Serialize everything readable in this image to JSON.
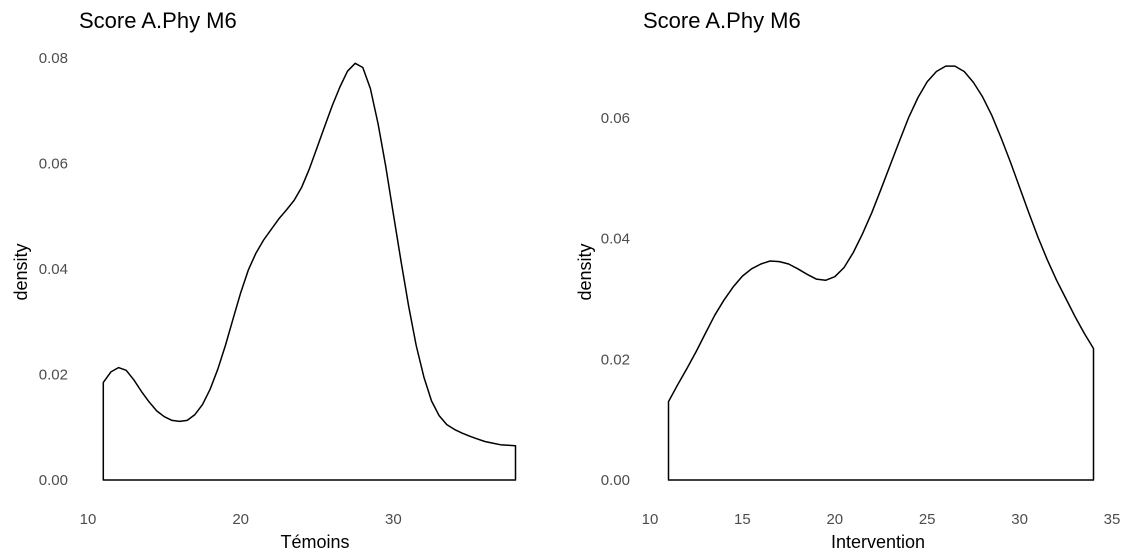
{
  "chart_data": [
    {
      "type": "area",
      "title": "Score A.Phy M6",
      "xlabel": "Témoins",
      "ylabel": "density",
      "xlim": [
        11,
        38
      ],
      "ylim": [
        0,
        0.08
      ],
      "x_ticks": [
        "10",
        "20",
        "30"
      ],
      "y_ticks": [
        "0.00",
        "0.02",
        "0.04",
        "0.06",
        "0.08"
      ],
      "grid": false,
      "series": [
        {
          "x": [
            11,
            11.5,
            12,
            12.5,
            13,
            13.5,
            14,
            14.5,
            15,
            15.5,
            16,
            16.5,
            17,
            17.5,
            18,
            18.5,
            19,
            19.5,
            20,
            20.5,
            21,
            21.5,
            22,
            22.5,
            23,
            23.5,
            24,
            24.5,
            25,
            25.5,
            26,
            26.5,
            27,
            27.5,
            28,
            28.5,
            29,
            29.5,
            30,
            30.5,
            31,
            31.5,
            32,
            32.5,
            33,
            33.5,
            34,
            34.5,
            35,
            35.5,
            36,
            36.5,
            37,
            37.5,
            38
          ],
          "y": [
            0.0185,
            0.0205,
            0.0213,
            0.0208,
            0.019,
            0.0168,
            0.0148,
            0.0131,
            0.012,
            0.0113,
            0.0111,
            0.0113,
            0.0124,
            0.0143,
            0.0172,
            0.021,
            0.0255,
            0.0305,
            0.0355,
            0.0398,
            0.043,
            0.0455,
            0.0475,
            0.0495,
            0.0512,
            0.053,
            0.0555,
            0.059,
            0.063,
            0.067,
            0.071,
            0.0745,
            0.0775,
            0.079,
            0.0782,
            0.0742,
            0.0675,
            0.0595,
            0.0505,
            0.0415,
            0.033,
            0.0255,
            0.0195,
            0.015,
            0.0122,
            0.0105,
            0.0096,
            0.0089,
            0.0083,
            0.0078,
            0.0073,
            0.007,
            0.0067,
            0.0066,
            0.0065
          ]
        }
      ]
    },
    {
      "type": "area",
      "title": "Score A.Phy M6",
      "xlabel": "Intervention",
      "ylabel": "density",
      "xlim": [
        11,
        34
      ],
      "ylim": [
        0,
        0.07
      ],
      "x_ticks": [
        "10",
        "15",
        "20",
        "25",
        "30",
        "35"
      ],
      "y_ticks": [
        "0.00",
        "0.02",
        "0.04",
        "0.06"
      ],
      "grid": false,
      "series": [
        {
          "x": [
            11,
            11.5,
            12,
            12.5,
            13,
            13.5,
            14,
            14.5,
            15,
            15.5,
            16,
            16.5,
            17,
            17.5,
            18,
            18.5,
            19,
            19.5,
            20,
            20.5,
            21,
            21.5,
            22,
            22.5,
            23,
            23.5,
            24,
            24.5,
            25,
            25.5,
            26,
            26.5,
            27,
            27.5,
            28,
            28.5,
            29,
            29.5,
            30,
            30.5,
            31,
            31.5,
            32,
            32.5,
            33,
            33.5,
            34
          ],
          "y": [
            0.013,
            0.0158,
            0.0185,
            0.0213,
            0.0243,
            0.0273,
            0.0298,
            0.032,
            0.0338,
            0.035,
            0.0358,
            0.0363,
            0.0362,
            0.0358,
            0.035,
            0.0341,
            0.0333,
            0.0331,
            0.0337,
            0.0352,
            0.0377,
            0.0408,
            0.0443,
            0.0482,
            0.0522,
            0.0562,
            0.0601,
            0.0634,
            0.066,
            0.0677,
            0.0686,
            0.0686,
            0.0677,
            0.0659,
            0.0635,
            0.0604,
            0.0567,
            0.0527,
            0.0485,
            0.0443,
            0.0402,
            0.0365,
            0.0331,
            0.0301,
            0.0271,
            0.0243,
            0.0218
          ]
        }
      ]
    }
  ]
}
